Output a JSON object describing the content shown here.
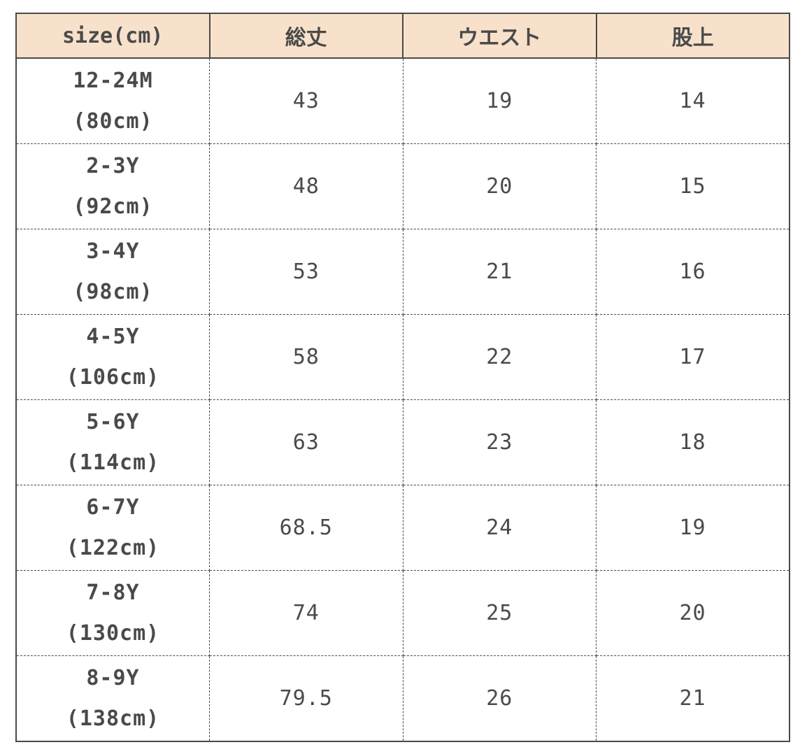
{
  "headers": [
    "size(cm)",
    "総丈",
    "ウエスト",
    "股上"
  ],
  "rows": [
    {
      "size": "12-24M",
      "height": "(80cm)",
      "length": "43",
      "waist": "19",
      "rise": "14"
    },
    {
      "size": "2-3Y",
      "height": "(92cm)",
      "length": "48",
      "waist": "20",
      "rise": "15"
    },
    {
      "size": "3-4Y",
      "height": "(98cm)",
      "length": "53",
      "waist": "21",
      "rise": "16"
    },
    {
      "size": "4-5Y",
      "height": "(106cm)",
      "length": "58",
      "waist": "22",
      "rise": "17"
    },
    {
      "size": "5-6Y",
      "height": "(114cm)",
      "length": "63",
      "waist": "23",
      "rise": "18"
    },
    {
      "size": "6-7Y",
      "height": "(122cm)",
      "length": "68.5",
      "waist": "24",
      "rise": "19"
    },
    {
      "size": "7-8Y",
      "height": "(130cm)",
      "length": "74",
      "waist": "25",
      "rise": "20"
    },
    {
      "size": "8-9Y",
      "height": "(138cm)",
      "length": "79.5",
      "waist": "26",
      "rise": "21"
    }
  ],
  "colors": {
    "header_bg": "#f8e1cb",
    "text": "#4a4a4a"
  }
}
